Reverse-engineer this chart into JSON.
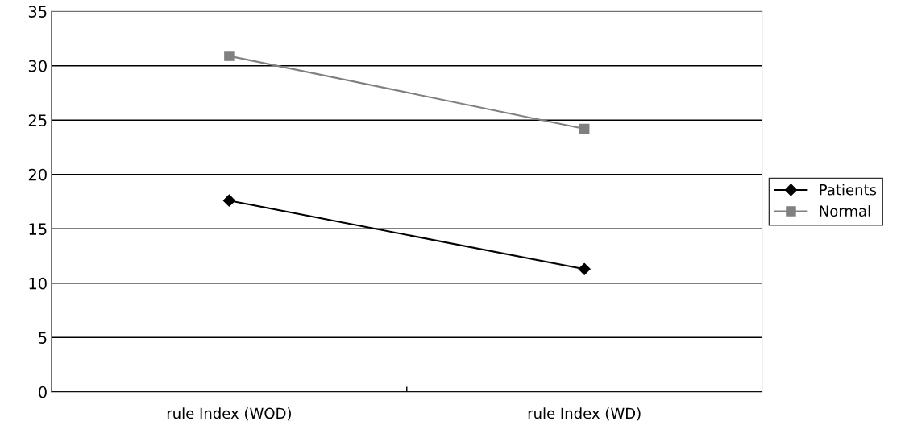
{
  "chart_data": {
    "type": "line",
    "categories": [
      "rule Index (WOD)",
      "rule Index (WD)"
    ],
    "series": [
      {
        "name": "Patients",
        "color": "#000000",
        "marker": "diamond",
        "values": [
          17.6,
          11.3
        ]
      },
      {
        "name": "Normal",
        "color": "#808080",
        "marker": "square",
        "values": [
          30.9,
          24.2
        ]
      }
    ],
    "ylim": [
      0,
      35
    ],
    "yticks": [
      0,
      5,
      10,
      15,
      20,
      25,
      30,
      35
    ],
    "grid": "y",
    "legend": "right",
    "line_style": "solid"
  }
}
